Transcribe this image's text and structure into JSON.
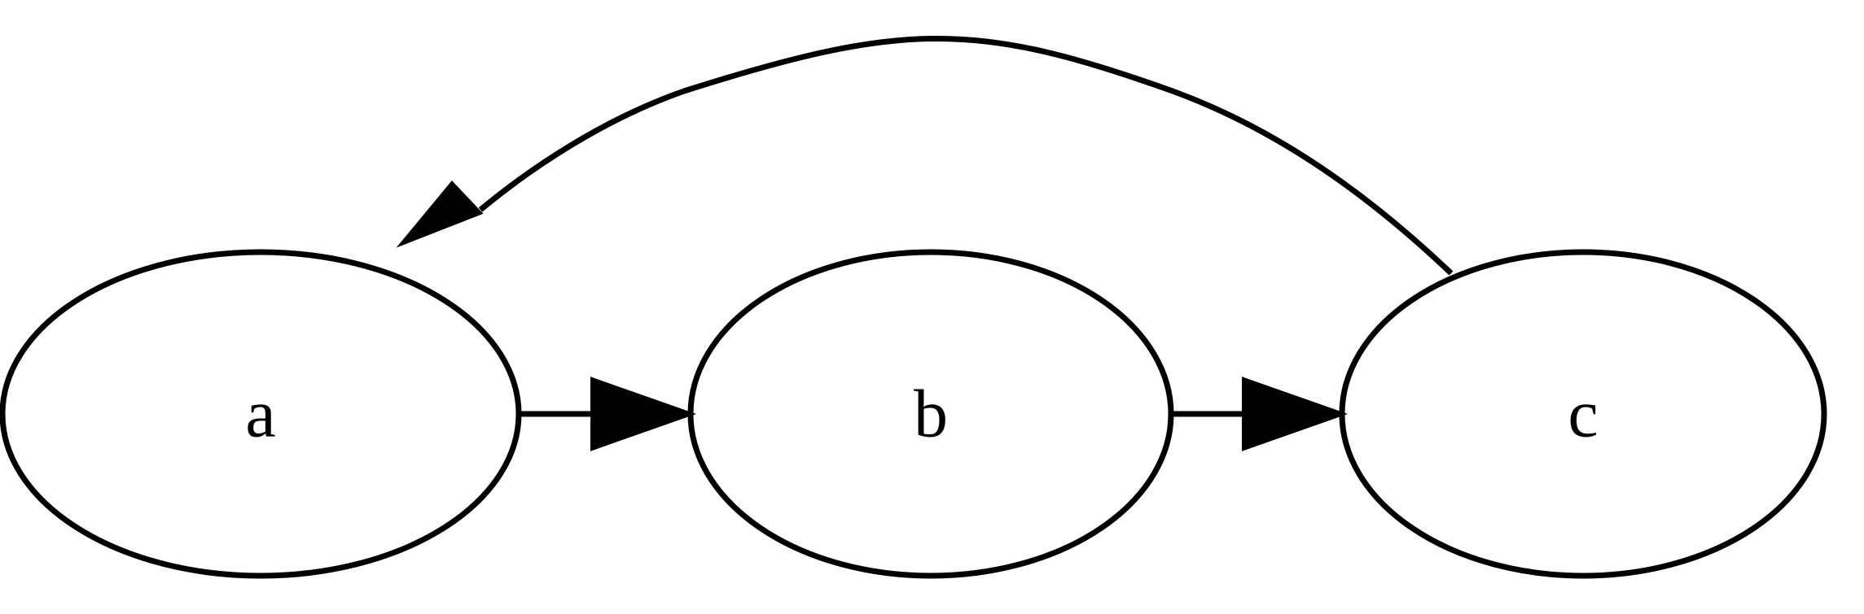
{
  "graph": {
    "nodes": [
      {
        "id": "a",
        "label": "a"
      },
      {
        "id": "b",
        "label": "b"
      },
      {
        "id": "c",
        "label": "c"
      }
    ],
    "edges": [
      {
        "from": "a",
        "to": "b"
      },
      {
        "from": "b",
        "to": "c"
      },
      {
        "from": "c",
        "to": "a"
      }
    ]
  }
}
